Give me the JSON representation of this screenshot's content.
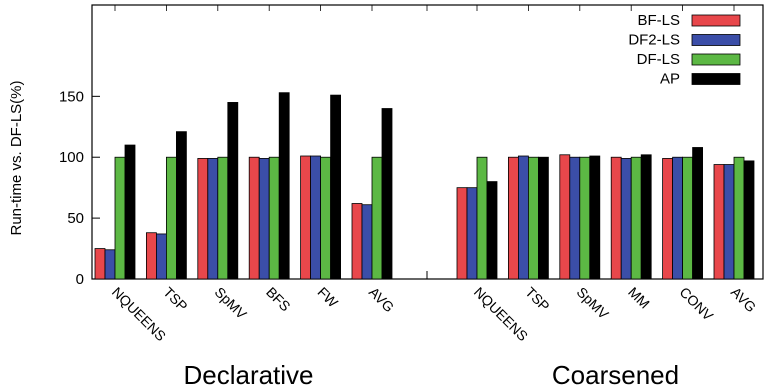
{
  "chart_data": {
    "type": "bar",
    "ylabel": "Run-time vs. DF-LS(%)",
    "ylim": [
      0,
      225
    ],
    "yticks": [
      0,
      50,
      100,
      150
    ],
    "legend_position": "top-right",
    "series": [
      {
        "name": "BF-LS",
        "color": "#e8474b"
      },
      {
        "name": "DF2-LS",
        "color": "#3b4ea8"
      },
      {
        "name": "DF-LS",
        "color": "#5cb844"
      },
      {
        "name": "AP",
        "color": "#000000"
      }
    ],
    "groups": [
      {
        "name": "Declarative",
        "categories": [
          "NQUEENS",
          "TSP",
          "SpMV",
          "BFS",
          "FW",
          "AVG"
        ],
        "values": [
          [
            25,
            24,
            100,
            110
          ],
          [
            38,
            37,
            100,
            121
          ],
          [
            99,
            99,
            100,
            145
          ],
          [
            100,
            99,
            100,
            153
          ],
          [
            101,
            101,
            100,
            151
          ],
          [
            62,
            61,
            100,
            140
          ]
        ]
      },
      {
        "name": "Coarsened",
        "categories": [
          "NQUEENS",
          "TSP",
          "SpMV",
          "MM",
          "CONV",
          "AVG"
        ],
        "values": [
          [
            75,
            75,
            100,
            80
          ],
          [
            100,
            101,
            100,
            100
          ],
          [
            102,
            100,
            100,
            101
          ],
          [
            100,
            99,
            100,
            102
          ],
          [
            99,
            100,
            100,
            108
          ],
          [
            94,
            94,
            100,
            97
          ]
        ]
      }
    ]
  }
}
